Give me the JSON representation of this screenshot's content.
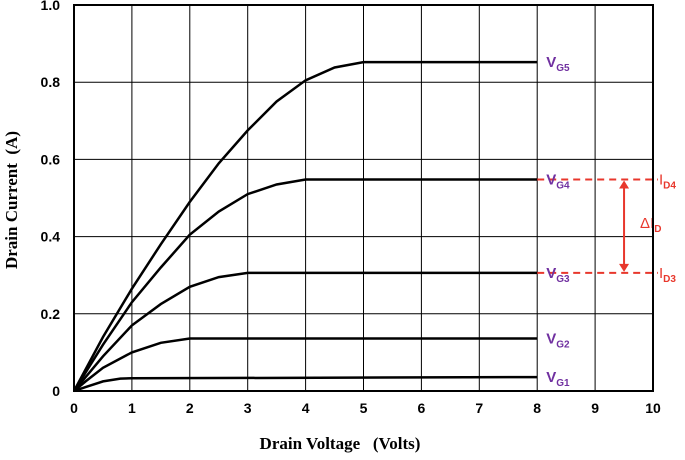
{
  "chart_data": {
    "type": "line",
    "xlabel": "Drain Voltage   (Volts)",
    "ylabel": "Drain Current  (A)",
    "xlim": [
      0,
      10
    ],
    "ylim": [
      0,
      1.0
    ],
    "x_ticks": [
      "0",
      "1",
      "2",
      "3",
      "4",
      "5",
      "6",
      "7",
      "8",
      "9",
      "10"
    ],
    "y_ticks": [
      "0",
      "0.2",
      "0.4",
      "0.6",
      "0.8",
      "1.0"
    ],
    "grid": true,
    "series": [
      {
        "label_main": "V",
        "label_sub": "G1",
        "points": [
          [
            0,
            0
          ],
          [
            0.2,
            0.01
          ],
          [
            0.5,
            0.025
          ],
          [
            0.8,
            0.032
          ],
          [
            1.0,
            0.033
          ],
          [
            8,
            0.036
          ]
        ]
      },
      {
        "label_main": "V",
        "label_sub": "G2",
        "points": [
          [
            0,
            0
          ],
          [
            0.2,
            0.025
          ],
          [
            0.5,
            0.06
          ],
          [
            1.0,
            0.1
          ],
          [
            1.5,
            0.125
          ],
          [
            2.0,
            0.136
          ],
          [
            8,
            0.136
          ]
        ]
      },
      {
        "label_main": "V",
        "label_sub": "G3",
        "points": [
          [
            0,
            0
          ],
          [
            0.5,
            0.09
          ],
          [
            1.0,
            0.17
          ],
          [
            1.5,
            0.225
          ],
          [
            2.0,
            0.27
          ],
          [
            2.5,
            0.295
          ],
          [
            3.0,
            0.306
          ],
          [
            8,
            0.306
          ]
        ]
      },
      {
        "label_main": "V",
        "label_sub": "G4",
        "points": [
          [
            0,
            0
          ],
          [
            0.5,
            0.12
          ],
          [
            1.0,
            0.23
          ],
          [
            1.5,
            0.32
          ],
          [
            2.0,
            0.405
          ],
          [
            2.5,
            0.465
          ],
          [
            3.0,
            0.51
          ],
          [
            3.5,
            0.535
          ],
          [
            4.0,
            0.548
          ],
          [
            8,
            0.548
          ]
        ]
      },
      {
        "label_main": "V",
        "label_sub": "G5",
        "points": [
          [
            0,
            0
          ],
          [
            0.5,
            0.14
          ],
          [
            1.0,
            0.265
          ],
          [
            1.5,
            0.38
          ],
          [
            2.0,
            0.49
          ],
          [
            2.5,
            0.59
          ],
          [
            3.0,
            0.675
          ],
          [
            3.5,
            0.75
          ],
          [
            4.0,
            0.805
          ],
          [
            4.5,
            0.838
          ],
          [
            5.0,
            0.852
          ],
          [
            8,
            0.852
          ]
        ]
      }
    ],
    "annotations": {
      "delta_label_main": "ΔI",
      "delta_label_sub": "D",
      "upper_label_main": "I",
      "upper_label_sub": "D4",
      "upper_value": 0.548,
      "lower_label_main": "I",
      "lower_label_sub": "D3",
      "lower_value": 0.306,
      "dash_x_range": [
        8,
        10
      ],
      "arrow_x": 9.5,
      "color": "#e8372c"
    },
    "series_label_color": "#7030a0"
  }
}
